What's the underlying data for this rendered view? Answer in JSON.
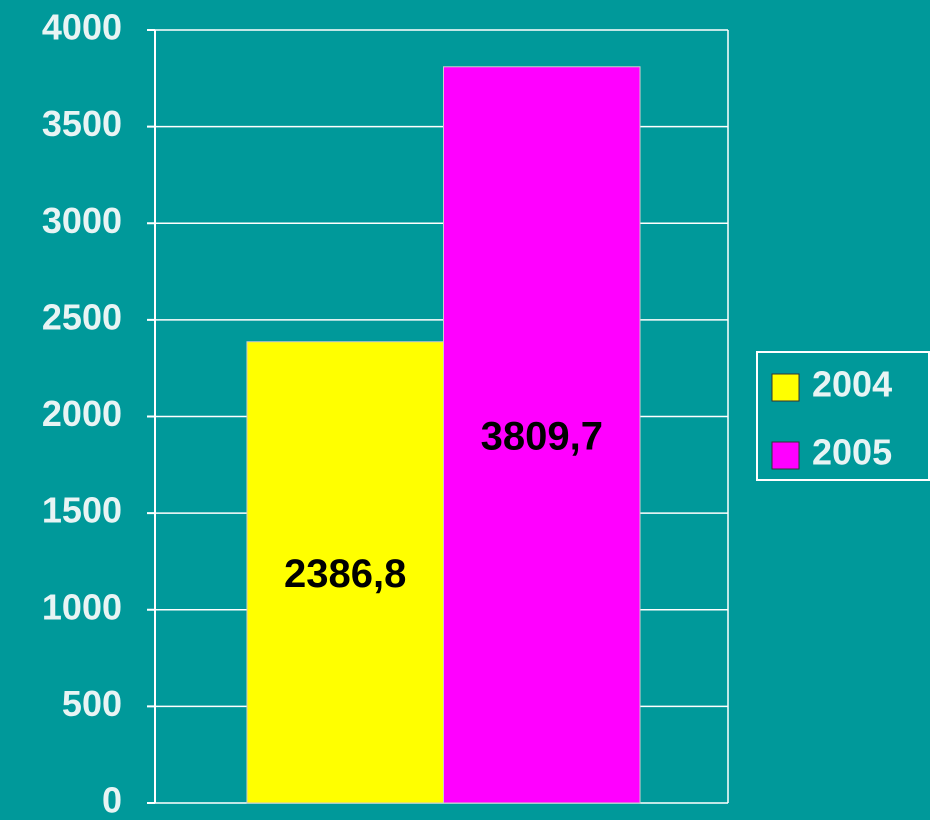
{
  "chart_data": {
    "type": "bar",
    "categories": [
      null
    ],
    "series": [
      {
        "name": "2004",
        "color": "#ffff00",
        "values": [
          2386.8
        ],
        "value_labels": [
          "2386,8"
        ]
      },
      {
        "name": "2005",
        "color": "#ff00ff",
        "values": [
          3809.7
        ],
        "value_labels": [
          "3809,7"
        ]
      }
    ],
    "ylim": [
      0,
      4000
    ],
    "yticks": [
      0,
      500,
      1000,
      1500,
      2000,
      2500,
      3000,
      3500,
      4000
    ],
    "grid": true,
    "legend": "right"
  }
}
